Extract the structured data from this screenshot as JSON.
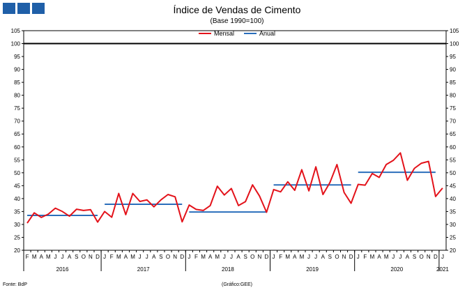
{
  "header": {
    "title": "Índice de Vendas de Cimento",
    "subtitle": "(Base 1990=100)"
  },
  "legend": [
    {
      "label": "Mensal",
      "color": "#e3121a"
    },
    {
      "label": "Anual",
      "color": "#2a6ebb"
    }
  ],
  "footer": {
    "source": "Fonte: BdP",
    "credit": "(Gráfico:GEE)"
  },
  "chart_data": {
    "type": "line",
    "ylim": [
      20,
      105
    ],
    "y_ticks": [
      20,
      25,
      30,
      35,
      40,
      45,
      50,
      55,
      60,
      65,
      70,
      75,
      80,
      85,
      90,
      95,
      100,
      105
    ],
    "reference_line": 100,
    "month_labels": [
      "F",
      "M",
      "A",
      "M",
      "J",
      "J",
      "A",
      "S",
      "O",
      "N",
      "D",
      "J",
      "F",
      "M",
      "A",
      "M",
      "J",
      "J",
      "A",
      "S",
      "O",
      "N",
      "D",
      "J",
      "F",
      "M",
      "A",
      "M",
      "J",
      "J",
      "A",
      "S",
      "O",
      "N",
      "D",
      "J",
      "F",
      "M",
      "A",
      "M",
      "J",
      "J",
      "A",
      "S",
      "O",
      "N",
      "D",
      "J",
      "F",
      "M",
      "A",
      "M",
      "J",
      "J",
      "A",
      "S",
      "O",
      "N",
      "D",
      "J"
    ],
    "years": [
      {
        "label": "2016",
        "from": 0,
        "to": 10
      },
      {
        "label": "2017",
        "from": 11,
        "to": 22
      },
      {
        "label": "2018",
        "from": 23,
        "to": 34
      },
      {
        "label": "2019",
        "from": 35,
        "to": 46
      },
      {
        "label": "2020",
        "from": 47,
        "to": 58
      },
      {
        "label": "2021",
        "from": 59,
        "to": 59
      }
    ],
    "series": [
      {
        "name": "Mensal",
        "color": "#e3121a",
        "values": [
          30.5,
          34.5,
          32.7,
          34.0,
          36.3,
          35.0,
          33.2,
          35.9,
          35.4,
          35.7,
          30.9,
          35.0,
          32.8,
          42.0,
          33.8,
          42.0,
          38.9,
          39.5,
          36.8,
          39.5,
          41.6,
          40.7,
          31.0,
          37.5,
          35.8,
          35.4,
          37.3,
          44.8,
          41.4,
          43.9,
          37.3,
          38.8,
          45.3,
          41.0,
          34.7,
          43.5,
          42.6,
          46.5,
          43.2,
          51.2,
          43.0,
          52.3,
          41.6,
          46.2,
          53.2,
          42.4,
          38.2,
          45.5,
          45.2,
          49.7,
          48.2,
          53.2,
          54.8,
          57.7,
          47.1,
          51.7,
          53.7,
          54.4,
          40.8,
          44.1
        ]
      },
      {
        "name": "Anual",
        "color": "#2a6ebb",
        "segments": [
          {
            "from": 0,
            "to": 10,
            "value": 33.5
          },
          {
            "from": 11,
            "to": 22,
            "value": 37.8
          },
          {
            "from": 23,
            "to": 34,
            "value": 34.8
          },
          {
            "from": 35,
            "to": 46,
            "value": 45.3
          },
          {
            "from": 47,
            "to": 58,
            "value": 50.2
          }
        ]
      }
    ]
  }
}
